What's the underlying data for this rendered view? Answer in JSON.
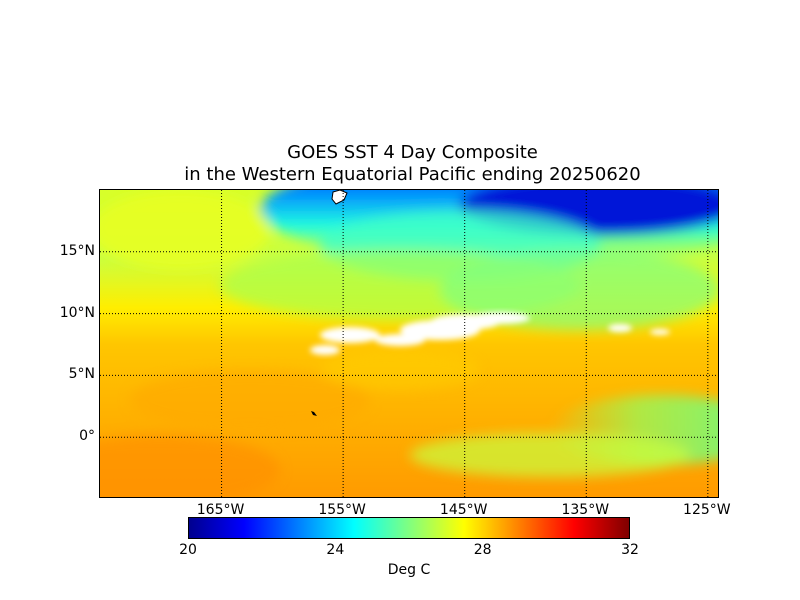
{
  "title_line1": "GOES SST 4 Day Composite",
  "title_line2": "in the Western Equatorial Pacific ending 20250620",
  "map": {
    "lon_range": [
      -175,
      -124
    ],
    "lat_range": [
      -5,
      20
    ],
    "lat_ticks": [
      {
        "value": 15,
        "label": "15°N"
      },
      {
        "value": 10,
        "label": "10°N"
      },
      {
        "value": 5,
        "label": "5°N"
      },
      {
        "value": 0,
        "label": "0°"
      }
    ],
    "lon_ticks": [
      {
        "value": -165,
        "label": "165°W"
      },
      {
        "value": -155,
        "label": "155°W"
      },
      {
        "value": -145,
        "label": "145°W"
      },
      {
        "value": -135,
        "label": "135°W"
      },
      {
        "value": -125,
        "label": "125°W"
      }
    ],
    "gridlines": "dotted",
    "colors": {
      "warm_south": "#ff9f00",
      "mid": "#ffd500",
      "yellow_green": "#e8ff20",
      "green": "#90ff70",
      "cyan": "#20ffe0",
      "blue": "#0060ff",
      "deep_blue": "#0010d0",
      "cloud_mask": "#ffffff",
      "land_outline": "#000000"
    }
  },
  "colorbar": {
    "min": 20,
    "max": 32,
    "ticks": [
      {
        "value": 20,
        "label": "20"
      },
      {
        "value": 24,
        "label": "24"
      },
      {
        "value": 28,
        "label": "28"
      },
      {
        "value": 32,
        "label": "32"
      }
    ],
    "label": "Deg C"
  }
}
